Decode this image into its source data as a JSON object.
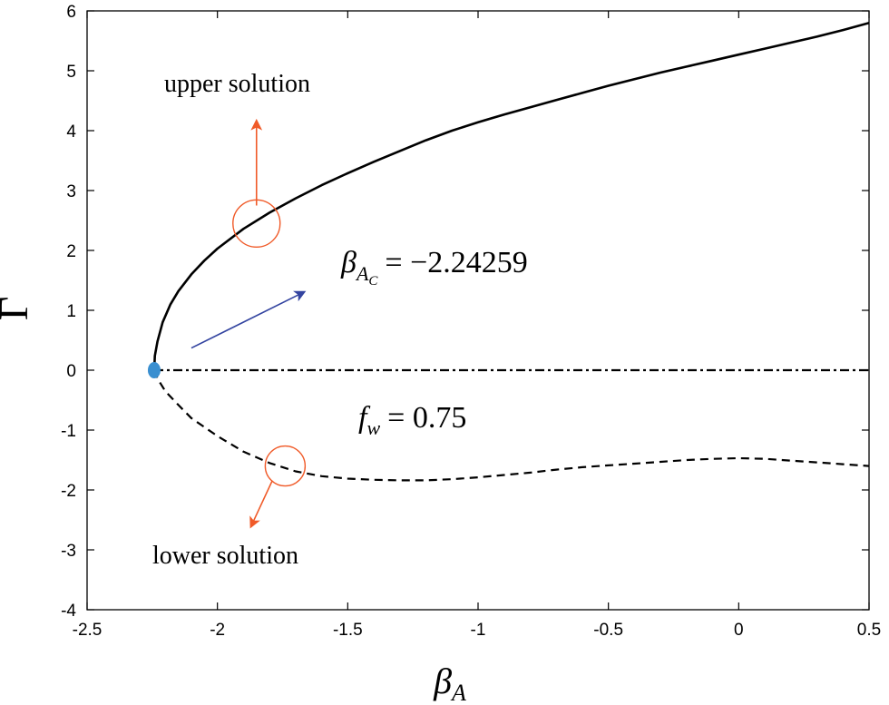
{
  "chart_data": {
    "type": "line",
    "xlabel": "β",
    "xlabel_sub": "A",
    "ylabel": "Γ",
    "xlim": [
      -2.5,
      0.5
    ],
    "ylim": [
      -4,
      6
    ],
    "x_ticks": [
      -2.5,
      -2,
      -1.5,
      -1,
      -0.5,
      0,
      0.5
    ],
    "x_tick_labels": [
      "-2.5",
      "-2",
      "-1.5",
      "-1",
      "-0.5",
      "0",
      "0.5"
    ],
    "y_ticks": [
      -4,
      -3,
      -2,
      -1,
      0,
      1,
      2,
      3,
      4,
      5,
      6
    ],
    "y_tick_labels": [
      "-4",
      "-3",
      "-2",
      "-1",
      "0",
      "1",
      "2",
      "3",
      "4",
      "5",
      "6"
    ],
    "grid": false,
    "series": [
      {
        "name": "upper solution",
        "style": "solid",
        "color": "#000000",
        "x": [
          -2.2426,
          -2.24,
          -2.23,
          -2.21,
          -2.18,
          -2.15,
          -2.1,
          -2.05,
          -2.0,
          -1.9,
          -1.8,
          -1.7,
          -1.6,
          -1.5,
          -1.4,
          -1.3,
          -1.2,
          -1.1,
          -1.0,
          -0.9,
          -0.8,
          -0.7,
          -0.6,
          -0.5,
          -0.4,
          -0.3,
          -0.2,
          -0.1,
          0.0,
          0.1,
          0.2,
          0.3,
          0.4,
          0.5
        ],
        "y": [
          0.0,
          0.24,
          0.48,
          0.8,
          1.1,
          1.32,
          1.6,
          1.83,
          2.03,
          2.36,
          2.63,
          2.87,
          3.09,
          3.29,
          3.48,
          3.66,
          3.84,
          4.0,
          4.14,
          4.27,
          4.39,
          4.51,
          4.63,
          4.75,
          4.86,
          4.97,
          5.07,
          5.17,
          5.27,
          5.37,
          5.47,
          5.57,
          5.68,
          5.8
        ]
      },
      {
        "name": "lower solution",
        "style": "dashed",
        "color": "#000000",
        "x": [
          -2.2426,
          -2.23,
          -2.2,
          -2.15,
          -2.1,
          -2.0,
          -1.9,
          -1.8,
          -1.7,
          -1.6,
          -1.5,
          -1.4,
          -1.3,
          -1.2,
          -1.1,
          -1.0,
          -0.9,
          -0.8,
          -0.7,
          -0.6,
          -0.5,
          -0.4,
          -0.3,
          -0.2,
          -0.1,
          0.0,
          0.1,
          0.2,
          0.3,
          0.4,
          0.5
        ],
        "y": [
          0.0,
          -0.14,
          -0.35,
          -0.58,
          -0.8,
          -1.1,
          -1.36,
          -1.55,
          -1.69,
          -1.77,
          -1.81,
          -1.83,
          -1.84,
          -1.84,
          -1.82,
          -1.79,
          -1.75,
          -1.71,
          -1.66,
          -1.62,
          -1.59,
          -1.56,
          -1.53,
          -1.5,
          -1.48,
          -1.47,
          -1.48,
          -1.51,
          -1.54,
          -1.57,
          -1.6
        ]
      },
      {
        "name": "zero line",
        "style": "dashdot",
        "color": "#000000",
        "x": [
          -2.2426,
          0.5
        ],
        "y": [
          0,
          0
        ]
      }
    ],
    "critical_point": {
      "x": -2.24259,
      "y": 0.0,
      "color": "#3a8fd0"
    },
    "annotations": {
      "upper_label": "upper solution",
      "lower_label": "lower solution",
      "critical_label": "= −2.24259",
      "critical_symbol": "β",
      "critical_sub": "A",
      "critical_subsub": "C",
      "fw_symbol": "f",
      "fw_sub": "w",
      "fw_label": "= 0.75",
      "upper_circle": {
        "x": -1.85,
        "y": 2.45
      },
      "upper_arrow": {
        "from": [
          -1.85,
          2.75
        ],
        "to": [
          -1.85,
          4.15
        ]
      },
      "lower_circle": {
        "x": -1.74,
        "y": -1.6
      },
      "lower_arrow": {
        "from": [
          -1.79,
          -1.85
        ],
        "to": [
          -1.87,
          -2.6
        ]
      },
      "blue_arrow": {
        "from": [
          -2.1,
          0.37
        ],
        "to": [
          -1.67,
          1.3
        ]
      },
      "highlight_color": "#f05a28",
      "blue_arrow_color": "#3344a0"
    }
  }
}
